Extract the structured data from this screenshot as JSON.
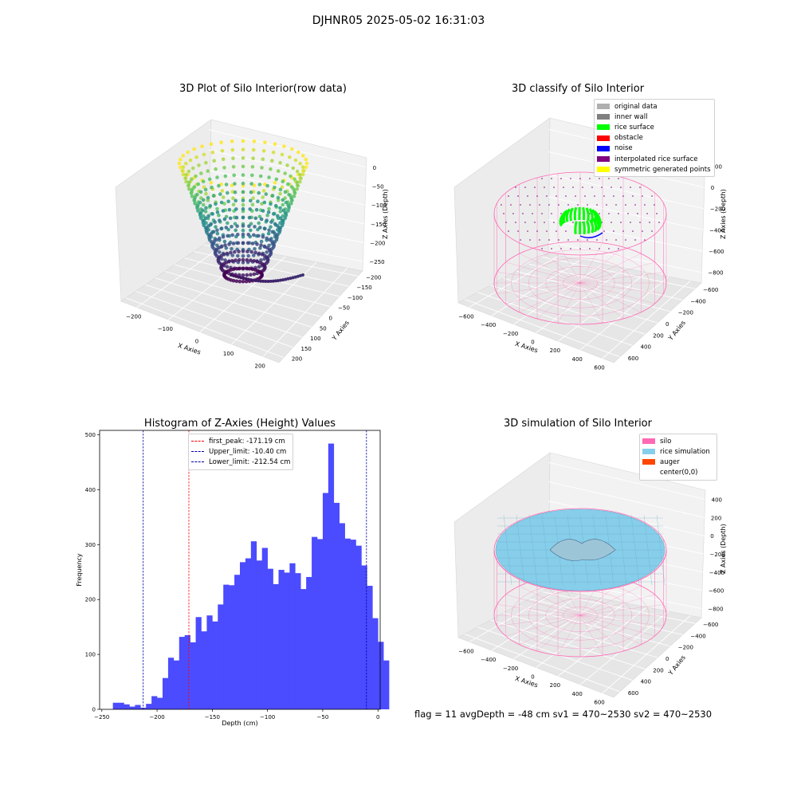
{
  "suptitle": "DJHNR05 2025-05-02 16:31:03",
  "footer": "flag = 11   avgDepth = -48 cm   sv1 = 470~2530  sv2 = 470~2530",
  "chart_data": [
    {
      "type": "scatter3d",
      "title": "3D Plot of Silo Interior(row data)",
      "xlabel": "X Axies",
      "ylabel": "Y Axies",
      "zlabel": "Z Axies (Depth)",
      "x_ticks": [
        "−200",
        "−100",
        "0",
        "100",
        "200"
      ],
      "y_ticks": [
        "200",
        "150",
        "100",
        "50",
        "0",
        "−50",
        "−100",
        "−150",
        "−200"
      ],
      "z_ticks": [
        "0",
        "−50",
        "−100",
        "−150",
        "−200",
        "−250"
      ],
      "xlim": [
        -250,
        250
      ],
      "ylim": [
        -200,
        200
      ],
      "zlim": [
        -260,
        0
      ],
      "colormap": "viridis",
      "description_points": "bowl-shaped point cloud from depth -250 (purple) to 0 (yellow)"
    },
    {
      "type": "scatter3d",
      "title": "3D classify of Silo Interior",
      "xlabel": "X Axies",
      "ylabel": "Y Axies",
      "zlabel": "Z Axies (Depth)",
      "x_ticks": [
        "−600",
        "−400",
        "−200",
        "0",
        "200",
        "400",
        "600"
      ],
      "y_ticks": [
        "600",
        "400",
        "200",
        "0",
        "−200",
        "−400",
        "−600"
      ],
      "z_ticks": [
        "200",
        "0",
        "−200",
        "−400",
        "−600",
        "−800"
      ],
      "legend": [
        {
          "label": "original data",
          "color": "#b0b0b0"
        },
        {
          "label": "inner wall",
          "color": "#808080"
        },
        {
          "label": "rice surface",
          "color": "#00ff00"
        },
        {
          "label": "obstacle",
          "color": "#ff0000"
        },
        {
          "label": "noise",
          "color": "#0000ff"
        },
        {
          "label": "interpolated rice surface",
          "color": "#800080"
        },
        {
          "label": "symmetric generated points",
          "color": "#ffff00"
        }
      ]
    },
    {
      "type": "bar",
      "title": "Histogram of Z-Axies (Height) Values",
      "xlabel": "Depth (cm)",
      "ylabel": "Frequency",
      "xlim": [
        -252,
        2
      ],
      "ylim": [
        0,
        508
      ],
      "x_ticks": [
        -250,
        -200,
        -150,
        -100,
        -50,
        0
      ],
      "y_ticks": [
        0,
        100,
        200,
        300,
        400,
        500
      ],
      "bin_start": -240,
      "bin_width": 5,
      "values": [
        12,
        12,
        9,
        5,
        8,
        3,
        10,
        24,
        21,
        57,
        94,
        89,
        132,
        135,
        122,
        168,
        142,
        171,
        160,
        191,
        227,
        226,
        245,
        268,
        275,
        306,
        271,
        294,
        256,
        228,
        254,
        249,
        266,
        248,
        219,
        241,
        314,
        310,
        394,
        484,
        376,
        339,
        311,
        309,
        298,
        262,
        225,
        166,
        123,
        89
      ],
      "bar_color": "#4b4bff",
      "vlines": [
        {
          "label": "first_peak: -171.19 cm",
          "x": -171.19,
          "color": "#ff0000"
        },
        {
          "label": "Upper_limit: -10.40 cm",
          "x": -10.4,
          "color": "#0000aa"
        },
        {
          "label": "Lower_limit: -212.54 cm",
          "x": -212.54,
          "color": "#0000aa"
        }
      ]
    },
    {
      "type": "surface3d",
      "title": "3D simulation of Silo Interior",
      "xlabel": "X Axies",
      "ylabel": "Y Axies",
      "zlabel": "Z Axies (Depth)",
      "x_ticks": [
        "−600",
        "−400",
        "−200",
        "0",
        "200",
        "400",
        "600"
      ],
      "y_ticks": [
        "600",
        "400",
        "200",
        "0",
        "−200",
        "−400",
        "−600"
      ],
      "z_ticks": [
        "400",
        "200",
        "0",
        "−200",
        "−400",
        "−600",
        "−800"
      ],
      "legend": [
        {
          "label": "silo",
          "color": "#ff69b4"
        },
        {
          "label": "rice simulation",
          "color": "#87ceeb"
        },
        {
          "label": "auger",
          "color": "#ff4500"
        },
        {
          "label": "center(0,0)",
          "color": "#ffffff"
        }
      ]
    }
  ]
}
